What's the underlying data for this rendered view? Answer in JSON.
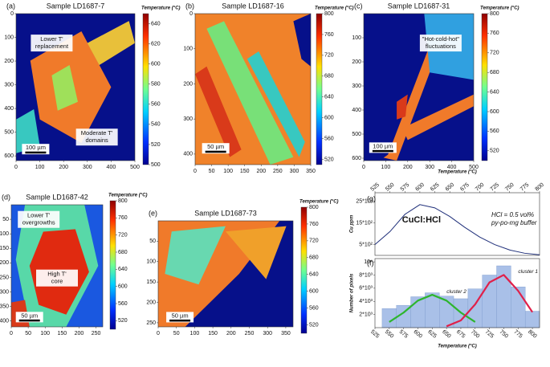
{
  "chart_data": [
    {
      "type": "map",
      "panel_label": "(a)",
      "title": "Sample LD1687-7",
      "colorbar_label": "Temperature (°C)",
      "colorbar_lim": [
        500,
        650
      ],
      "colorbar_ticks": [
        500,
        520,
        540,
        560,
        580,
        600,
        620,
        640
      ],
      "xlim": [
        0,
        500
      ],
      "xticks": [
        0,
        100,
        200,
        300,
        400,
        500
      ],
      "ylim": [
        0,
        620
      ],
      "yticks": [
        0,
        100,
        200,
        300,
        400,
        500,
        600
      ],
      "annotations": [
        [
          "Lower T'",
          "replacement"
        ],
        [
          "Moderate T'",
          "domains"
        ]
      ],
      "scale_bar": "100 µm"
    },
    {
      "type": "map",
      "panel_label": "(b)",
      "title": "Sample LD1687-16",
      "colorbar_label": "Temperature (°C)",
      "colorbar_lim": [
        510,
        800
      ],
      "colorbar_ticks": [
        520,
        560,
        600,
        640,
        680,
        720,
        760,
        800
      ],
      "xlim": [
        0,
        350
      ],
      "xticks": [
        0,
        50,
        100,
        150,
        200,
        250,
        300,
        350
      ],
      "ylim": [
        0,
        430
      ],
      "yticks": [
        0,
        100,
        200,
        300,
        400
      ],
      "annotations": [],
      "scale_bar": "50 µm"
    },
    {
      "type": "map",
      "panel_label": "(c)",
      "title": "Sample LD1687-31",
      "colorbar_label": "Temperature (°C)",
      "colorbar_lim": [
        500,
        800
      ],
      "colorbar_ticks": [
        520,
        560,
        600,
        640,
        680,
        720,
        760,
        800
      ],
      "xlim": [
        0,
        500
      ],
      "xticks": [
        0,
        100,
        200,
        300,
        400,
        500
      ],
      "ylim": [
        0,
        610
      ],
      "yticks": [
        100,
        200,
        300,
        400,
        500,
        600
      ],
      "annotations": [
        [
          "\"Hot-cold-hot\"",
          "fluctuations"
        ]
      ],
      "scale_bar": "100 µm"
    },
    {
      "type": "map",
      "panel_label": "(d)",
      "title": "Sample LD1687-42",
      "colorbar_label": "Temperature (°C)",
      "colorbar_lim": [
        500,
        800
      ],
      "colorbar_ticks": [
        520,
        560,
        600,
        640,
        680,
        720,
        760,
        800
      ],
      "xlim": [
        0,
        270
      ],
      "xticks": [
        0,
        50,
        100,
        150,
        200,
        250
      ],
      "ylim": [
        0,
        420
      ],
      "yticks": [
        50,
        100,
        150,
        200,
        250,
        300,
        350,
        400
      ],
      "annotations": [
        [
          "Lower T'",
          "overgrowths"
        ],
        [
          "High T'",
          "core"
        ]
      ],
      "scale_bar": "50 µm"
    },
    {
      "type": "map",
      "panel_label": "(e)",
      "title": "Sample LD1687-73",
      "colorbar_label": "Temperature (°C)",
      "colorbar_lim": [
        500,
        800
      ],
      "colorbar_ticks": [
        520,
        560,
        600,
        640,
        680,
        720,
        760,
        800
      ],
      "xlim": [
        0,
        370
      ],
      "xticks": [
        0,
        50,
        100,
        150,
        200,
        250,
        300,
        350
      ],
      "ylim": [
        0,
        260
      ],
      "yticks": [
        50,
        100,
        150,
        200,
        250
      ],
      "annotations": [],
      "scale_bar": "50 µm"
    },
    {
      "type": "line",
      "panel_label": "(g)",
      "x_label": "Temperature (°C)",
      "y_label": "Cu ppm",
      "x": [
        525,
        550,
        575,
        600,
        625,
        650,
        675,
        700,
        725,
        750,
        775,
        800
      ],
      "series": [
        {
          "name": "CuCl:HCl",
          "color": "#1f2f7a",
          "values": [
            500,
            1100,
            1900,
            2350,
            2200,
            1800,
            1300,
            850,
            500,
            250,
            100,
            30
          ]
        }
      ],
      "xlim": [
        525,
        800
      ],
      "xticks": [
        525,
        550,
        575,
        600,
        625,
        650,
        675,
        700,
        725,
        750,
        775,
        800
      ],
      "ylim": [
        0,
        2900
      ],
      "yticks": [
        {
          "value": 500,
          "label": "5*10²"
        },
        {
          "value": 1500,
          "label": "15*10²"
        },
        {
          "value": 2500,
          "label": "25*10²"
        }
      ],
      "annotations": [
        "HCl = 0.5 vol%",
        "py-po-mg buffer"
      ]
    },
    {
      "type": "histogram",
      "panel_label": "(f)",
      "x_label": "Temperature (°C)",
      "y_label": "Number of pixels",
      "bins": [
        537.5,
        562.5,
        587.5,
        612.5,
        637.5,
        662.5,
        687.5,
        712.5,
        737.5,
        762.5,
        787.5,
        812.5
      ],
      "values": [
        2900,
        3400,
        4700,
        5300,
        4800,
        4400,
        5900,
        8000,
        9400,
        6200,
        2500
      ],
      "color": "#a9c0e8",
      "series": [
        {
          "name": "cluster 2",
          "color": "#2db52d",
          "x": [
            550,
            575,
            600,
            625,
            650,
            675,
            700
          ],
          "values": [
            862,
            2290,
            4115,
            5000,
            4115,
            2290,
            862
          ]
        },
        {
          "name": "cluster 1",
          "color": "#e0204a",
          "x": [
            650,
            675,
            700,
            725,
            750,
            775,
            800
          ],
          "values": [
            205,
            1095,
            3543,
            6880,
            8018,
            5610,
            2357
          ]
        }
      ],
      "xlim": [
        525,
        812.5
      ],
      "xticks": [
        525,
        550,
        575,
        600,
        625,
        650,
        675,
        700,
        725,
        750,
        775,
        800
      ],
      "ylim": [
        0,
        10500
      ],
      "yticks": [
        {
          "value": 2000,
          "label": "2*10³"
        },
        {
          "value": 4000,
          "label": "4*10³"
        },
        {
          "value": 6000,
          "label": "6*10³"
        },
        {
          "value": 8000,
          "label": "8*10³"
        },
        {
          "value": 10000,
          "label": "10⁴"
        }
      ]
    }
  ]
}
